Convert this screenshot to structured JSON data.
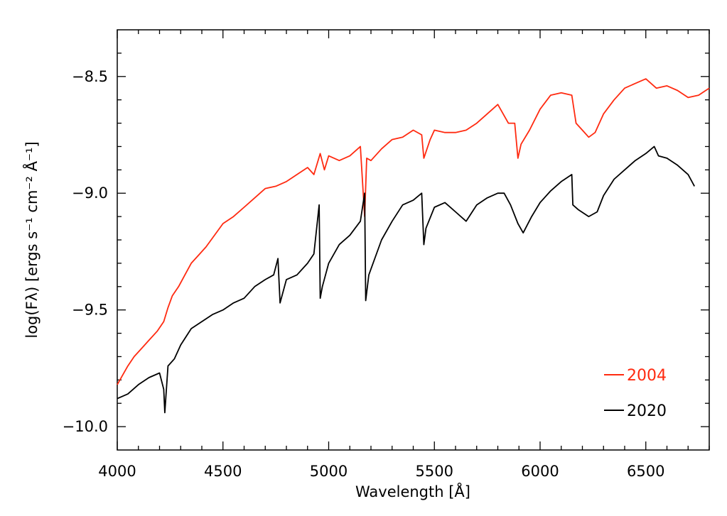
{
  "chart_data": {
    "type": "line",
    "xlabel": "Wavelength [Å]",
    "ylabel": "log(Fλ) [ergs s⁻¹ cm⁻² Å⁻¹]",
    "xlim": [
      4000,
      6800
    ],
    "ylim": [
      -10.1,
      -8.3
    ],
    "x_ticks": [
      4000,
      4500,
      5000,
      5500,
      6000,
      6500
    ],
    "x_tick_labels": [
      "4000",
      "4500",
      "5000",
      "5500",
      "6000",
      "6500"
    ],
    "y_ticks": [
      -10.0,
      -9.5,
      -9.0,
      -8.5
    ],
    "y_tick_labels": [
      "−10.0",
      "−9.5",
      "−9.0",
      "−8.5"
    ],
    "legend_position": "bottom-right",
    "series": [
      {
        "name": "2004",
        "color": "#ff2a10",
        "x": [
          4000,
          4025,
          4050,
          4080,
          4110,
          4150,
          4190,
          4220,
          4240,
          4260,
          4290,
          4320,
          4350,
          4380,
          4420,
          4460,
          4500,
          4550,
          4600,
          4650,
          4700,
          4750,
          4800,
          4850,
          4900,
          4930,
          4960,
          4980,
          5000,
          5050,
          5100,
          5150,
          5170,
          5180,
          5200,
          5250,
          5300,
          5350,
          5400,
          5440,
          5450,
          5480,
          5500,
          5550,
          5600,
          5650,
          5700,
          5750,
          5800,
          5850,
          5880,
          5895,
          5910,
          5950,
          6000,
          6050,
          6100,
          6150,
          6170,
          6200,
          6230,
          6260,
          6300,
          6350,
          6400,
          6450,
          6500,
          6550,
          6600,
          6650,
          6700,
          6750,
          6800
        ],
        "values": [
          -9.82,
          -9.78,
          -9.74,
          -9.7,
          -9.67,
          -9.63,
          -9.59,
          -9.55,
          -9.49,
          -9.44,
          -9.4,
          -9.35,
          -9.3,
          -9.27,
          -9.23,
          -9.18,
          -9.13,
          -9.1,
          -9.06,
          -9.02,
          -8.98,
          -8.97,
          -8.95,
          -8.92,
          -8.89,
          -8.92,
          -8.83,
          -8.9,
          -8.84,
          -8.86,
          -8.84,
          -8.8,
          -9.1,
          -8.85,
          -8.86,
          -8.81,
          -8.77,
          -8.76,
          -8.73,
          -8.75,
          -8.85,
          -8.77,
          -8.73,
          -8.74,
          -8.74,
          -8.73,
          -8.7,
          -8.66,
          -8.62,
          -8.7,
          -8.7,
          -8.85,
          -8.79,
          -8.73,
          -8.64,
          -8.58,
          -8.57,
          -8.58,
          -8.7,
          -8.73,
          -8.76,
          -8.74,
          -8.66,
          -8.6,
          -8.55,
          -8.53,
          -8.51,
          -8.55,
          -8.54,
          -8.56,
          -8.59,
          -8.58,
          -8.55
        ]
      },
      {
        "name": "2020",
        "color": "#000000",
        "x": [
          4000,
          4050,
          4100,
          4150,
          4200,
          4220,
          4225,
          4240,
          4270,
          4300,
          4350,
          4400,
          4450,
          4500,
          4550,
          4600,
          4650,
          4700,
          4740,
          4760,
          4770,
          4800,
          4850,
          4900,
          4930,
          4955,
          4960,
          4970,
          5000,
          5050,
          5100,
          5150,
          5170,
          5175,
          5190,
          5250,
          5300,
          5350,
          5400,
          5440,
          5450,
          5460,
          5500,
          5550,
          5600,
          5650,
          5700,
          5750,
          5800,
          5830,
          5860,
          5895,
          5920,
          5960,
          6000,
          6050,
          6100,
          6150,
          6155,
          6180,
          6230,
          6270,
          6300,
          6350,
          6400,
          6450,
          6500,
          6540,
          6560,
          6600,
          6650,
          6700,
          6730
        ],
        "values": [
          -9.88,
          -9.86,
          -9.82,
          -9.79,
          -9.77,
          -9.84,
          -9.94,
          -9.74,
          -9.71,
          -9.65,
          -9.58,
          -9.55,
          -9.52,
          -9.5,
          -9.47,
          -9.45,
          -9.4,
          -9.37,
          -9.35,
          -9.28,
          -9.47,
          -9.37,
          -9.35,
          -9.3,
          -9.26,
          -9.05,
          -9.45,
          -9.4,
          -9.3,
          -9.22,
          -9.18,
          -9.12,
          -9.0,
          -9.46,
          -9.35,
          -9.2,
          -9.12,
          -9.05,
          -9.03,
          -9.0,
          -9.22,
          -9.15,
          -9.06,
          -9.04,
          -9.08,
          -9.12,
          -9.05,
          -9.02,
          -9.0,
          -9.0,
          -9.05,
          -9.13,
          -9.17,
          -9.1,
          -9.04,
          -8.99,
          -8.95,
          -8.92,
          -9.05,
          -9.07,
          -9.1,
          -9.08,
          -9.01,
          -8.94,
          -8.9,
          -8.86,
          -8.83,
          -8.8,
          -8.84,
          -8.85,
          -8.88,
          -8.92,
          -8.97
        ]
      }
    ]
  }
}
